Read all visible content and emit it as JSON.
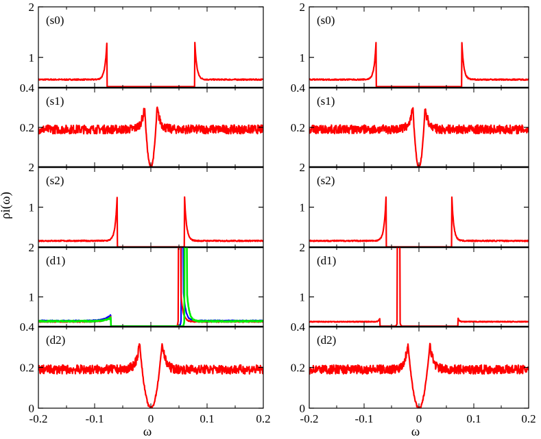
{
  "chart_data": {
    "type": "line",
    "title": "",
    "ylabel": "ρi(ω)",
    "xlabel": "ω",
    "xlim": [
      -0.2,
      0.2
    ],
    "x_ticks": [
      "-0.2",
      "-0.1",
      "0",
      "0.1",
      "0.2"
    ],
    "columns": [
      {
        "name": "left",
        "panels": [
          {
            "label": "(s0)",
            "ylim": [
              0.4,
              2
            ],
            "y_ticks": [
              "0.4",
              "1",
              "2"
            ],
            "y_tick_values": [
              0.4,
              1,
              2
            ],
            "series": [
              {
                "name": "red",
                "color": "#ff0000",
                "kind": "peaks",
                "base": 0.56,
                "gap": 0.078,
                "peak": 1.35,
                "in_gap": 0.42,
                "noise": 0.012
              }
            ]
          },
          {
            "label": "(s1)",
            "ylim": [
              0,
              0.4
            ],
            "y_ticks": [
              "0.2"
            ],
            "y_tick_values": [
              0.2
            ],
            "series": [
              {
                "name": "red",
                "color": "#ff0000",
                "kind": "dip",
                "base": 0.19,
                "width": 0.011,
                "peak": 0.3,
                "noise": 0.022
              }
            ]
          },
          {
            "label": "(s2)",
            "ylim": [
              0,
              2
            ],
            "y_ticks": [
              "2",
              "1"
            ],
            "y_tick_values": [
              2,
              1
            ],
            "series": [
              {
                "name": "red",
                "color": "#ff0000",
                "kind": "peaks",
                "base": 0.16,
                "gap": 0.06,
                "peak": 1.25,
                "in_gap": 0.01,
                "noise": 0.015
              }
            ]
          },
          {
            "label": "(d1)",
            "ylim": [
              0.4,
              2
            ],
            "y_ticks": [
              "2",
              "1"
            ],
            "y_tick_values": [
              2,
              1
            ],
            "series": [
              {
                "name": "blue",
                "color": "#0000ff",
                "kind": "d1left",
                "base": 0.52,
                "edge": 0.071,
                "edge_peak": 0.64,
                "spike": 0.056,
                "spike_h": 2.2,
                "tail": 0.52,
                "noise": 0.01
              },
              {
                "name": "red",
                "color": "#ff0000",
                "kind": "d1left",
                "base": 0.5,
                "edge": 0.071,
                "edge_peak": 0.6,
                "spike": 0.051,
                "spike_h": 2.2,
                "tail": 0.5,
                "noise": 0.01
              },
              {
                "name": "green",
                "color": "#00ee00",
                "kind": "d1left",
                "base": 0.51,
                "edge": 0.071,
                "edge_peak": 0.58,
                "spike": 0.062,
                "spike_h": 2.2,
                "tail": 0.51,
                "noise": 0.012
              }
            ]
          },
          {
            "label": "(d2)",
            "ylim": [
              0,
              0.4
            ],
            "y_ticks": [
              "0.4",
              "0.2",
              "0"
            ],
            "y_tick_values": [
              0.4,
              0.2,
              0
            ],
            "series": [
              {
                "name": "red",
                "color": "#ff0000",
                "kind": "dip",
                "base": 0.19,
                "width": 0.02,
                "peak": 0.32,
                "noise": 0.022
              }
            ]
          }
        ]
      },
      {
        "name": "right",
        "panels": [
          {
            "label": "(s0)",
            "ylim": [
              0.4,
              2
            ],
            "y_ticks": [
              "0.4",
              "1",
              "2"
            ],
            "y_tick_values": [
              0.4,
              1,
              2
            ],
            "series": [
              {
                "name": "red",
                "color": "#ff0000",
                "kind": "peaks",
                "base": 0.56,
                "gap": 0.078,
                "peak": 1.35,
                "in_gap": 0.42,
                "noise": 0.012
              }
            ]
          },
          {
            "label": "(s1)",
            "ylim": [
              0,
              0.4
            ],
            "y_ticks": [
              "0.2"
            ],
            "y_tick_values": [
              0.2
            ],
            "series": [
              {
                "name": "red",
                "color": "#ff0000",
                "kind": "dip",
                "base": 0.19,
                "width": 0.011,
                "peak": 0.3,
                "noise": 0.022
              }
            ]
          },
          {
            "label": "(s2)",
            "ylim": [
              0,
              2
            ],
            "y_ticks": [
              "2",
              "1"
            ],
            "y_tick_values": [
              2,
              1
            ],
            "series": [
              {
                "name": "red",
                "color": "#ff0000",
                "kind": "peaks",
                "base": 0.16,
                "gap": 0.06,
                "peak": 1.25,
                "in_gap": 0.01,
                "noise": 0.015
              }
            ]
          },
          {
            "label": "(d1)",
            "ylim": [
              0.4,
              2
            ],
            "y_ticks": [
              "2",
              "1"
            ],
            "y_tick_values": [
              2,
              1
            ],
            "series": [
              {
                "name": "red",
                "color": "#ff0000",
                "kind": "d1right",
                "base": 0.5,
                "edge": 0.071,
                "edge_peak": 0.58,
                "spike": -0.037,
                "spike_h": 2.2,
                "noise": 0.008
              }
            ]
          },
          {
            "label": "(d2)",
            "ylim": [
              0,
              0.4
            ],
            "y_ticks": [
              "0.4",
              "0.2",
              "0"
            ],
            "y_tick_values": [
              0.4,
              0.2,
              0
            ],
            "series": [
              {
                "name": "red",
                "color": "#ff0000",
                "kind": "dip",
                "base": 0.19,
                "width": 0.02,
                "peak": 0.32,
                "noise": 0.022
              }
            ]
          }
        ]
      }
    ]
  }
}
